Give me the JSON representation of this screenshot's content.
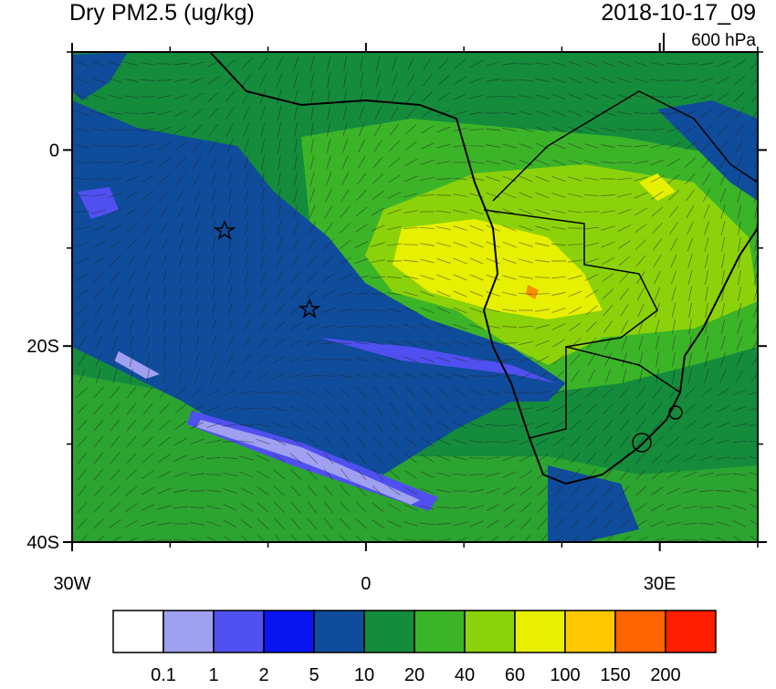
{
  "title": "Dry PM2.5 (ug/kg)",
  "date": "2018-10-17_09",
  "level": "600 hPa",
  "map": {
    "lon_range": [
      -30,
      40
    ],
    "lat_range": [
      -40,
      10
    ],
    "lon_ticks": [
      {
        "value": -30,
        "label": "30W"
      },
      0,
      {
        "value": 30,
        "label": "30E"
      }
    ],
    "lat_ticks": [
      0,
      {
        "value": -20,
        "label": "20S"
      },
      {
        "value": -40,
        "label": "40S"
      }
    ],
    "minor_lon_ticks": [
      -20,
      -10,
      10,
      20,
      40
    ],
    "minor_lat_ticks": [
      10,
      -10,
      -30
    ]
  },
  "colorbar": {
    "levels": [
      0.1,
      1,
      2,
      5,
      10,
      20,
      40,
      60,
      100,
      150,
      200
    ],
    "colors": [
      "#ffffff",
      "#a0a0f0",
      "#5050f0",
      "#0a14f0",
      "#0f4c9c",
      "#148c3c",
      "#3cb428",
      "#8cd20a",
      "#e6f000",
      "#ffc800",
      "#ff6400",
      "#ff1e00"
    ]
  }
}
